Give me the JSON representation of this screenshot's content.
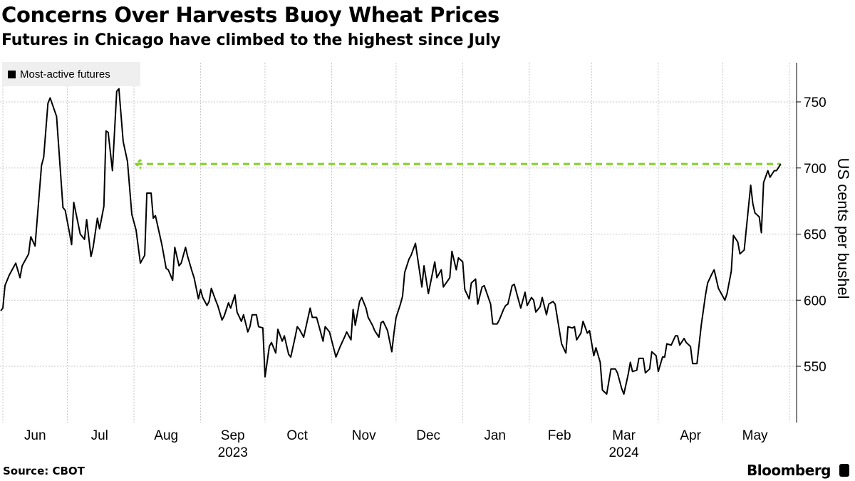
{
  "chart_data": {
    "type": "line",
    "title": "Concerns Over Harvests Buoy Wheat Prices",
    "subtitle": "Futures in Chicago have climbed to the highest since July",
    "ylabel": "US cents per bushel",
    "xlabel": "",
    "ylim": [
      507,
      779
    ],
    "xlim": [
      "2023-05-31",
      "2024-06-04"
    ],
    "yticks": [
      550,
      600,
      650,
      700,
      750
    ],
    "xtick_labels": [
      {
        "date": "2023-06-16",
        "label": "Jun"
      },
      {
        "date": "2023-07-16",
        "label": "Jul"
      },
      {
        "date": "2023-08-16",
        "label": "Aug"
      },
      {
        "date": "2023-09-16",
        "label": "Sep",
        "year": "2023"
      },
      {
        "date": "2023-10-16",
        "label": "Oct"
      },
      {
        "date": "2023-11-16",
        "label": "Nov"
      },
      {
        "date": "2023-12-16",
        "label": "Dec"
      },
      {
        "date": "2024-01-16",
        "label": "Jan"
      },
      {
        "date": "2024-02-15",
        "label": "Feb"
      },
      {
        "date": "2024-03-16",
        "label": "Mar",
        "year": "2024"
      },
      {
        "date": "2024-04-16",
        "label": "Apr"
      },
      {
        "date": "2024-05-16",
        "label": "May"
      }
    ],
    "grid": true,
    "legend_position": "top-left",
    "series": [
      {
        "name": "Most-active futures",
        "color": "#000000",
        "dates": [
          "2023-05-31",
          "2023-06-01",
          "2023-06-02",
          "2023-06-04",
          "2023-06-07",
          "2023-06-09",
          "2023-06-10",
          "2023-06-13",
          "2023-06-14",
          "2023-06-16",
          "2023-06-19",
          "2023-06-20",
          "2023-06-22",
          "2023-06-23",
          "2023-06-26",
          "2023-06-29",
          "2023-06-30",
          "2023-07-02",
          "2023-07-03",
          "2023-07-04",
          "2023-07-06",
          "2023-07-07",
          "2023-07-09",
          "2023-07-10",
          "2023-07-12",
          "2023-07-13",
          "2023-07-15",
          "2023-07-16",
          "2023-07-18",
          "2023-07-19",
          "2023-07-20",
          "2023-07-22",
          "2023-07-24",
          "2023-07-25",
          "2023-07-27",
          "2023-07-29",
          "2023-07-31",
          "2023-08-02",
          "2023-08-04",
          "2023-08-06",
          "2023-08-07",
          "2023-08-09",
          "2023-08-10",
          "2023-08-11",
          "2023-08-14",
          "2023-08-16",
          "2023-08-17",
          "2023-08-19",
          "2023-08-20",
          "2023-08-22",
          "2023-08-23",
          "2023-08-25",
          "2023-08-26",
          "2023-08-28",
          "2023-08-29",
          "2023-08-31",
          "2023-09-01",
          "2023-09-02",
          "2023-09-04",
          "2023-09-05",
          "2023-09-06",
          "2023-09-08",
          "2023-09-09",
          "2023-09-11",
          "2023-09-12",
          "2023-09-14",
          "2023-09-15",
          "2023-09-17",
          "2023-09-18",
          "2023-09-20",
          "2023-09-21",
          "2023-09-23",
          "2023-09-24",
          "2023-09-25",
          "2023-09-27",
          "2023-09-28",
          "2023-09-30",
          "2023-10-01",
          "2023-10-03",
          "2023-10-04",
          "2023-10-06",
          "2023-10-07",
          "2023-10-09",
          "2023-10-10",
          "2023-10-12",
          "2023-10-13",
          "2023-10-15",
          "2023-10-16",
          "2023-10-17",
          "2023-10-19",
          "2023-10-22",
          "2023-10-23",
          "2023-10-25",
          "2023-10-26",
          "2023-10-28",
          "2023-10-29",
          "2023-10-31",
          "2023-11-03",
          "2023-11-04",
          "2023-11-05",
          "2023-11-07",
          "2023-11-08",
          "2023-11-10",
          "2023-11-11",
          "2023-11-12",
          "2023-11-14",
          "2023-11-15",
          "2023-11-17",
          "2023-11-18",
          "2023-11-20",
          "2023-11-21",
          "2023-11-23",
          "2023-11-24",
          "2023-11-25",
          "2023-11-27",
          "2023-11-29",
          "2023-11-30",
          "2023-12-01",
          "2023-12-03",
          "2023-12-04",
          "2023-12-05",
          "2023-12-07",
          "2023-12-08",
          "2023-12-10",
          "2023-12-11",
          "2023-12-13",
          "2023-12-14",
          "2023-12-16",
          "2023-12-19",
          "2023-12-20",
          "2023-12-22",
          "2023-12-23",
          "2023-12-26",
          "2023-12-27",
          "2023-12-29",
          "2023-12-30",
          "2024-01-01",
          "2024-01-02",
          "2024-01-04",
          "2024-01-05",
          "2024-01-07",
          "2024-01-08",
          "2024-01-10",
          "2024-01-11",
          "2024-01-14",
          "2024-01-15",
          "2024-01-17",
          "2024-01-18",
          "2024-01-20",
          "2024-01-21",
          "2024-01-22",
          "2024-01-24",
          "2024-01-25",
          "2024-01-27",
          "2024-01-28",
          "2024-01-30",
          "2024-01-31",
          "2024-02-02",
          "2024-02-03",
          "2024-02-04",
          "2024-02-06",
          "2024-02-07",
          "2024-02-09",
          "2024-02-10",
          "2024-02-12",
          "2024-02-13",
          "2024-02-16",
          "2024-02-18",
          "2024-02-19",
          "2024-02-21",
          "2024-02-22",
          "2024-02-23",
          "2024-02-25",
          "2024-02-26",
          "2024-02-28",
          "2024-02-29",
          "2024-03-02",
          "2024-03-03",
          "2024-03-05",
          "2024-03-06",
          "2024-03-08",
          "2024-03-10",
          "2024-03-12",
          "2024-03-13",
          "2024-03-15",
          "2024-03-16",
          "2024-03-18",
          "2024-03-19",
          "2024-03-20",
          "2024-03-22",
          "2024-03-23",
          "2024-03-25",
          "2024-03-26",
          "2024-03-28",
          "2024-03-29",
          "2024-03-31",
          "2024-04-01",
          "2024-04-03",
          "2024-04-04",
          "2024-04-05",
          "2024-04-07",
          "2024-04-09",
          "2024-04-10",
          "2024-04-11",
          "2024-04-13",
          "2024-04-14",
          "2024-04-16",
          "2024-04-17",
          "2024-04-19",
          "2024-04-21",
          "2024-04-23",
          "2024-04-24",
          "2024-04-26",
          "2024-04-27",
          "2024-04-29",
          "2024-05-02",
          "2024-05-03",
          "2024-05-05",
          "2024-05-06",
          "2024-05-08",
          "2024-05-09",
          "2024-05-11",
          "2024-05-14",
          "2024-05-15",
          "2024-05-16",
          "2024-05-18",
          "2024-05-19",
          "2024-05-20",
          "2024-05-22",
          "2024-05-23",
          "2024-05-25",
          "2024-05-26",
          "2024-05-28"
        ],
        "values": [
          592,
          594,
          611,
          619,
          628,
          617,
          626,
          635,
          648,
          641,
          702,
          708,
          749,
          753,
          739,
          670,
          668,
          651,
          642,
          674,
          658,
          650,
          646,
          661,
          633,
          640,
          662,
          654,
          671,
          728,
          727,
          698,
          758,
          760,
          720,
          705,
          665,
          653,
          628,
          634,
          681,
          681,
          662,
          664,
          642,
          624,
          623,
          615,
          640,
          626,
          628,
          640,
          633,
          622,
          617,
          601,
          608,
          602,
          596,
          599,
          609,
          600,
          596,
          585,
          588,
          598,
          594,
          604,
          591,
          584,
          589,
          576,
          580,
          589,
          589,
          580,
          579,
          542,
          565,
          568,
          560,
          578,
          569,
          573,
          559,
          557,
          572,
          580,
          578,
          572,
          594,
          587,
          587,
          581,
          569,
          580,
          576,
          557,
          561,
          565,
          572,
          576,
          570,
          593,
          581,
          599,
          602,
          594,
          587,
          581,
          577,
          572,
          583,
          584,
          577,
          561,
          575,
          587,
          597,
          603,
          621,
          631,
          634,
          643,
          632,
          610,
          626,
          605,
          629,
          617,
          623,
          610,
          617,
          637,
          623,
          632,
          629,
          608,
          601,
          613,
          616,
          597,
          610,
          611,
          597,
          582,
          582,
          585,
          593,
          596,
          597,
          611,
          612,
          600,
          594,
          606,
          596,
          602,
          600,
          591,
          595,
          602,
          589,
          597,
          599,
          597,
          567,
          560,
          580,
          579,
          580,
          570,
          575,
          584,
          575,
          577,
          558,
          564,
          553,
          532,
          529,
          548,
          548,
          545,
          533,
          529,
          544,
          553,
          546,
          547,
          556,
          556,
          545,
          548,
          561,
          558,
          546,
          557,
          557,
          567,
          566,
          573,
          573,
          566,
          571,
          568,
          565,
          552,
          552,
          581,
          604,
          613,
          620,
          623,
          609,
          600,
          605,
          622,
          649,
          644,
          635,
          638,
          687,
          673,
          666,
          663,
          651,
          689,
          698,
          693,
          698,
          698,
          703
        ]
      }
    ],
    "reference_line": {
      "value": 703,
      "color": "#7ed321",
      "style": "dashed",
      "start_date": "2023-07-31",
      "end_date": "2024-05-28",
      "arrow": "left"
    }
  },
  "legend": {
    "label": "Most-active futures"
  },
  "footer": {
    "source": "Source: CBOT",
    "brand": "Bloomberg"
  }
}
